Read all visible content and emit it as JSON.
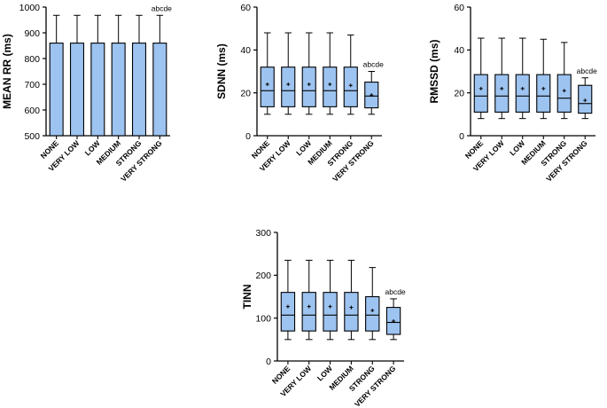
{
  "chart_data": [
    {
      "id": "mean-rr",
      "type": "bar",
      "title": "",
      "xlabel": "",
      "ylabel": "MEAN RR  (ms)",
      "ylim": [
        500,
        1000
      ],
      "yticks": [
        "500",
        "600",
        "700",
        "800",
        "900",
        "1000"
      ],
      "categories": [
        "NONE",
        "VERY LOW",
        "LOW",
        "MEDIUM",
        "STRONG",
        "VERY STRONG"
      ],
      "values": [
        860,
        860,
        860,
        860,
        860,
        860
      ],
      "error_upper": [
        968,
        968,
        968,
        968,
        968,
        968
      ],
      "annotations": [
        {
          "category": "VERY STRONG",
          "text": "abcde"
        }
      ],
      "color": "#9dc3f0"
    },
    {
      "id": "sdnn",
      "type": "box",
      "title": "",
      "xlabel": "",
      "ylabel": "SDNN  (ms)",
      "ylim": [
        0,
        60
      ],
      "yticks": [
        "0",
        "20",
        "40",
        "60"
      ],
      "categories": [
        "NONE",
        "VERY LOW",
        "LOW",
        "MEDIUM",
        "STRONG",
        "VERY STRONG"
      ],
      "boxes": [
        {
          "min": 10,
          "q1": 13.5,
          "median": 21,
          "q3": 32,
          "max": 48,
          "mean": 24
        },
        {
          "min": 10,
          "q1": 13.5,
          "median": 21,
          "q3": 32,
          "max": 48,
          "mean": 24
        },
        {
          "min": 10,
          "q1": 13.5,
          "median": 21,
          "q3": 32,
          "max": 48,
          "mean": 24
        },
        {
          "min": 10,
          "q1": 13.5,
          "median": 21,
          "q3": 32,
          "max": 48,
          "mean": 24
        },
        {
          "min": 10,
          "q1": 13.5,
          "median": 21,
          "q3": 32,
          "max": 47,
          "mean": 23.5
        },
        {
          "min": 10,
          "q1": 13,
          "median": 18.5,
          "q3": 25,
          "max": 30,
          "mean": 19
        }
      ],
      "annotations": [
        {
          "category": "VERY STRONG",
          "text": "abcde"
        }
      ],
      "color": "#9dc3f0"
    },
    {
      "id": "rmssd",
      "type": "box",
      "title": "",
      "xlabel": "",
      "ylabel": "RMSSD  (ms)",
      "ylim": [
        0,
        60
      ],
      "yticks": [
        "0",
        "20",
        "40",
        "60"
      ],
      "categories": [
        "NONE",
        "VERY LOW",
        "LOW",
        "MEDIUM",
        "STRONG",
        "VERY STRONG"
      ],
      "boxes": [
        {
          "min": 8,
          "q1": 11,
          "median": 18.5,
          "q3": 28.5,
          "max": 45.5,
          "mean": 22
        },
        {
          "min": 8,
          "q1": 11,
          "median": 18.5,
          "q3": 28.5,
          "max": 45.5,
          "mean": 22
        },
        {
          "min": 8,
          "q1": 11,
          "median": 18.5,
          "q3": 28.5,
          "max": 45.5,
          "mean": 22
        },
        {
          "min": 8,
          "q1": 11,
          "median": 18.5,
          "q3": 28.5,
          "max": 45,
          "mean": 22
        },
        {
          "min": 8,
          "q1": 11,
          "median": 17.5,
          "q3": 28.5,
          "max": 43.5,
          "mean": 21
        },
        {
          "min": 8,
          "q1": 10.5,
          "median": 15,
          "q3": 23.5,
          "max": 27,
          "mean": 16.5
        }
      ],
      "annotations": [
        {
          "category": "VERY STRONG",
          "text": "abcde"
        }
      ],
      "color": "#9dc3f0"
    },
    {
      "id": "tinn",
      "type": "box",
      "title": "",
      "xlabel": "",
      "ylabel": "TINN",
      "ylim": [
        0,
        300
      ],
      "yticks": [
        "0",
        "100",
        "200",
        "300"
      ],
      "categories": [
        "NONE",
        "VERY LOW",
        "LOW",
        "MEDIUM",
        "STRONG",
        "VERY STRONG"
      ],
      "boxes": [
        {
          "min": 50,
          "q1": 70,
          "median": 107,
          "q3": 160,
          "max": 235,
          "mean": 127
        },
        {
          "min": 50,
          "q1": 70,
          "median": 107,
          "q3": 160,
          "max": 235,
          "mean": 127
        },
        {
          "min": 50,
          "q1": 70,
          "median": 107,
          "q3": 160,
          "max": 235,
          "mean": 127
        },
        {
          "min": 50,
          "q1": 70,
          "median": 107,
          "q3": 160,
          "max": 235,
          "mean": 125
        },
        {
          "min": 50,
          "q1": 70,
          "median": 107,
          "q3": 150,
          "max": 218,
          "mean": 118
        },
        {
          "min": 50,
          "q1": 62,
          "median": 90,
          "q3": 125,
          "max": 145,
          "mean": 93
        }
      ],
      "annotations": [
        {
          "category": "VERY STRONG",
          "text": "abcde"
        }
      ],
      "color": "#9dc3f0"
    }
  ]
}
